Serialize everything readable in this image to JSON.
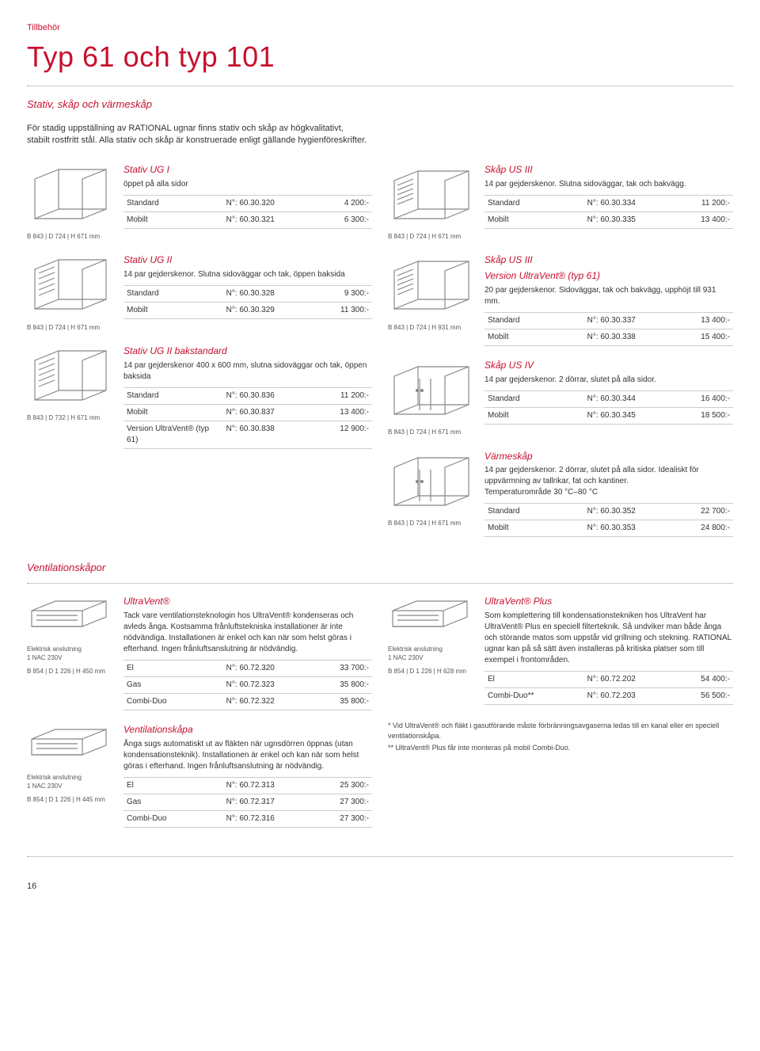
{
  "eyebrow": "Tillbehör",
  "title": "Typ 61 och typ 101",
  "subtitle": "Stativ, skåp och värmeskåp",
  "intro": "För stadig uppställning av RATIONAL ugnar finns stativ och skåp av högkvalitativt, stabilt rostfritt stål. Alla stativ och skåp är konstruerade enligt gällande hygienföreskrifter.",
  "vent_title": "Ventilationskåpor",
  "pagenum": "16",
  "left": [
    {
      "title": "Stativ UG I",
      "desc": "öppet på alla sidor",
      "dims": "B 843 | D 724 | H 671 mm",
      "rows": [
        [
          "Standard",
          "N°: 60.30.320",
          "4 200:-"
        ],
        [
          "Mobilt",
          "N°: 60.30.321",
          "6 300:-"
        ]
      ]
    },
    {
      "title": "Stativ UG II",
      "desc": "14 par gejderskenor. Slutna sidoväggar och tak, öppen baksida",
      "dims": "B 843 | D 724 | H 671 mm",
      "rows": [
        [
          "Standard",
          "N°: 60.30.328",
          "9 300:-"
        ],
        [
          "Mobilt",
          "N°: 60.30.329",
          "11 300:-"
        ]
      ]
    },
    {
      "title": "Stativ UG II bakstandard",
      "desc": "14 par gejderskenor 400 x 600 mm, slutna sidoväggar och tak, öppen baksida",
      "dims": "B 843 | D 732 | H 671 mm",
      "rows": [
        [
          "Standard",
          "N°: 60.30.836",
          "11 200:-"
        ],
        [
          "Mobilt",
          "N°: 60.30.837",
          "13 400:-"
        ],
        [
          "Version UltraVent® (typ 61)",
          "N°: 60.30.838",
          "12 900:-"
        ]
      ]
    }
  ],
  "right": [
    {
      "title": "Skåp US III",
      "desc": "14 par gejderskenor. Slutna sidoväggar, tak och bakvägg.",
      "dims": "B 843 | D 724 | H 671 mm",
      "rows": [
        [
          "Standard",
          "N°: 60.30.334",
          "11 200:-"
        ],
        [
          "Mobilt",
          "N°: 60.30.335",
          "13 400:-"
        ]
      ]
    },
    {
      "title": "Skåp US III",
      "subtitle2": "Version UltraVent® (typ 61)",
      "desc": "20 par gejderskenor. Sidoväggar, tak och bakvägg, upphöjt till 931 mm.",
      "dims": "B 843 | D 724 | H 931 mm",
      "rows": [
        [
          "Standard",
          "N°: 60.30.337",
          "13 400:-"
        ],
        [
          "Mobilt",
          "N°: 60.30.338",
          "15 400:-"
        ]
      ]
    },
    {
      "title": "Skåp US IV",
      "desc": "14 par gejderskenor. 2 dörrar, slutet på alla sidor.",
      "dims": "B 843 | D 724 | H 671 mm",
      "rows": [
        [
          "Standard",
          "N°: 60.30.344",
          "16 400:-"
        ],
        [
          "Mobilt",
          "N°: 60.30.345",
          "18 500:-"
        ]
      ]
    },
    {
      "title": "Värmeskåp",
      "desc": "14 par gejderskenor. 2 dörrar, slutet på alla sidor. Idealiskt för uppvärmning av tallrikar, fat och kantiner.\nTemperaturområde 30 °C–80 °C",
      "dims": "B 843 | D 724 | H 671 mm",
      "rows": [
        [
          "Standard",
          "N°: 60.30.352",
          "22 700:-"
        ],
        [
          "Mobilt",
          "N°: 60.30.353",
          "24 800:-"
        ]
      ]
    }
  ],
  "vent_left": [
    {
      "title": "UltraVent®",
      "desc": "Tack vare ventilationsteknologin hos UltraVent® kondenseras och avleds ånga. Kostsamma frånluftstekniska installationer är inte nödvändiga. Installationen är enkel och kan när som helst göras i efterhand. Ingen frånluftsanslutning är nödvändig.",
      "meta": "Elektrisk anslutning\n1 NAC 230V",
      "dims": "B 854 | D 1 226 | H 450 mm",
      "rows": [
        [
          "El",
          "N°: 60.72.320",
          "33 700:-"
        ],
        [
          "Gas",
          "N°: 60.72.323",
          "35 800:-"
        ],
        [
          "Combi-Duo",
          "N°: 60.72.322",
          "35 800:-"
        ]
      ]
    },
    {
      "title": "Ventilationskåpa",
      "desc": "Ånga sugs automatiskt ut av fläkten när ugnsdörren öppnas (utan kondensationsteknik). Installationen är enkel och kan när som helst göras i efterhand. Ingen frånluftsanslutning är nödvändig.",
      "meta": "Elektrisk anslutning\n1 NAC 230V",
      "dims": "B 854 | D 1 226 | H 445 mm",
      "rows": [
        [
          "El",
          "N°: 60.72.313",
          "25 300:-"
        ],
        [
          "Gas",
          "N°: 60.72.317",
          "27 300:-"
        ],
        [
          "Combi-Duo",
          "N°: 60.72.316",
          "27 300:-"
        ]
      ]
    }
  ],
  "vent_right": [
    {
      "title": "UltraVent® Plus",
      "desc": "Som komplettering till kondensationstekniken hos UltraVent har UltraVent® Plus en speciell filterteknik. Så undviker man både ånga och störande matos som uppstår vid grillning och stekning. RATIONAL ugnar kan på så sätt även installeras på kritiska platser som till exempel i frontområden.",
      "meta": "Elektrisk anslutning\n1 NAC 230V",
      "dims": "B 854 | D 1 226 | H 628 mm",
      "rows": [
        [
          "El",
          "N°: 60.72.202",
          "54 400:-"
        ],
        [
          "Combi-Duo**",
          "N°: 60.72.203",
          "56 500:-"
        ]
      ]
    }
  ],
  "footnotes": [
    "*  Vid UltraVent® och fläkt i gasutförande måste förbränningsavgaserna ledas till en kanal eller en speciell ventilationskåpa.",
    "** UltraVent® Plus får inte monteras på mobil Combi-Duo."
  ]
}
